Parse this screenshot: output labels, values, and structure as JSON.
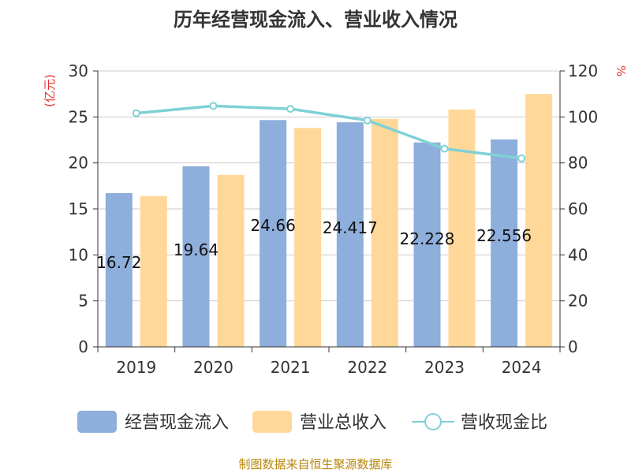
{
  "chart_data": {
    "type": "bar",
    "title": "历年经营现金流入、营业收入情况",
    "categories": [
      "2019",
      "2020",
      "2021",
      "2022",
      "2023",
      "2024"
    ],
    "series": [
      {
        "name": "经营现金流入",
        "kind": "bar",
        "axis": "left",
        "color": "#8eaedb",
        "values": [
          16.72,
          19.64,
          24.66,
          24.417,
          22.228,
          22.556
        ],
        "labels": [
          "16.72",
          "19.64",
          "24.66",
          "24.417",
          "22.228",
          "22.556"
        ]
      },
      {
        "name": "营业总收入",
        "kind": "bar",
        "axis": "left",
        "color": "#ffd899",
        "values": [
          16.4,
          18.7,
          23.8,
          24.8,
          25.8,
          27.5
        ]
      },
      {
        "name": "营收现金比",
        "kind": "line",
        "axis": "right",
        "color": "#7fd1d6",
        "values": [
          101.6,
          104.8,
          103.5,
          98.5,
          86.2,
          82.0
        ]
      }
    ],
    "y_left": {
      "unit": "(亿元)",
      "min": 0,
      "max": 30,
      "ticks": [
        0,
        5,
        10,
        15,
        20,
        25,
        30
      ]
    },
    "y_right": {
      "unit": "%",
      "min": 0,
      "max": 120,
      "ticks": [
        0,
        20,
        40,
        60,
        80,
        100,
        120
      ]
    },
    "grid": true,
    "legend_position": "bottom",
    "source": "制图数据来自恒生聚源数据库"
  }
}
